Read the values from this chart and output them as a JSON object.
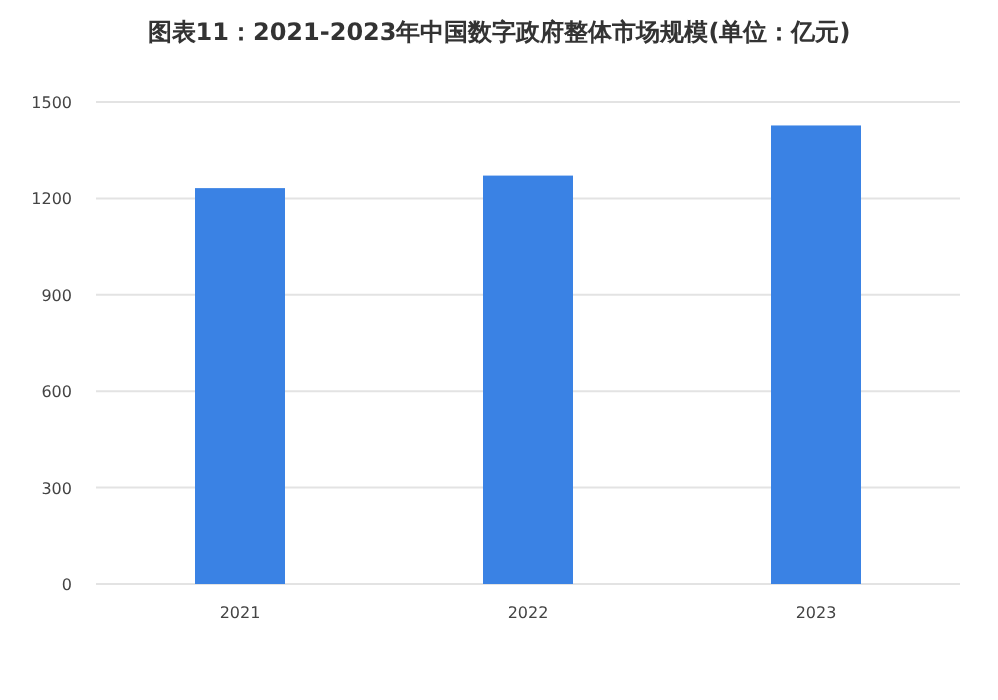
{
  "chart_data": {
    "type": "bar",
    "title": "图表11：2021-2023年中国数字政府整体市场规模(单位：亿元)",
    "categories": [
      "2021",
      "2022",
      "2023"
    ],
    "series": [
      {
        "color": "#3a82e4",
        "values": [
          1232,
          1271,
          1427
        ]
      }
    ],
    "ylim": [
      0,
      1500
    ],
    "yticks": [
      0,
      300,
      600,
      900,
      1200,
      1500
    ],
    "grid": "y"
  }
}
